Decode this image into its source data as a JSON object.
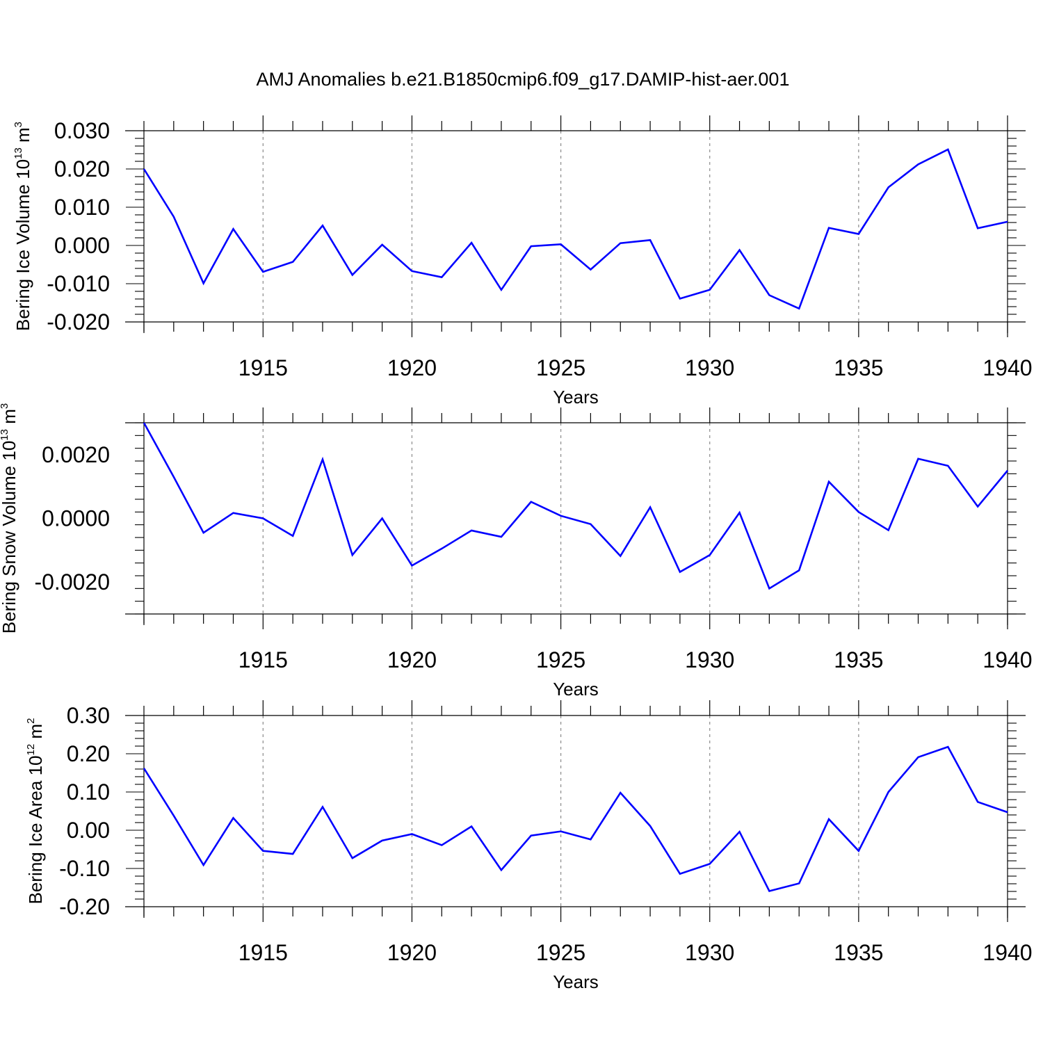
{
  "figure": {
    "title": "AMJ Anomalies b.e21.B1850cmip6.f09_g17.DAMIP-hist-aer.001"
  },
  "chart_data": [
    {
      "type": "line",
      "title": "",
      "xlabel": "Years",
      "ylabel": {
        "base": "Bering Ice Volume 10",
        "exp": "13",
        "unit": " m",
        "unit_exp": "3"
      },
      "xlim": [
        1911,
        1940
      ],
      "ylim": [
        -0.02,
        0.03
      ],
      "x_ticks": [
        "1915",
        "1920",
        "1925",
        "1930",
        "1935",
        "1940"
      ],
      "y_ticks": [
        {
          "v": 0.03,
          "label": "0.030"
        },
        {
          "v": 0.02,
          "label": "0.020"
        },
        {
          "v": 0.01,
          "label": "0.010"
        },
        {
          "v": 0.0,
          "label": "0.000"
        },
        {
          "v": -0.01,
          "label": "-0.010"
        },
        {
          "v": -0.02,
          "label": "-0.020"
        }
      ],
      "grid": "vertical dashed at major x ticks",
      "color": "#0000ff",
      "series": [
        {
          "x": [
            1911,
            1912,
            1913,
            1914,
            1915,
            1916,
            1917,
            1918,
            1919,
            1920,
            1921,
            1922,
            1923,
            1924,
            1925,
            1926,
            1927,
            1928,
            1929,
            1930,
            1931,
            1932,
            1933,
            1934,
            1935,
            1936,
            1937,
            1938,
            1939,
            1940
          ],
          "values": [
            0.02,
            0.0075,
            -0.0099,
            0.0043,
            -0.0069,
            -0.0043,
            0.0052,
            -0.0077,
            0.0002,
            -0.0067,
            -0.0083,
            0.0007,
            -0.0116,
            -0.0002,
            0.0003,
            -0.0063,
            0.0006,
            0.0014,
            -0.0139,
            -0.0116,
            -0.0012,
            -0.013,
            -0.0165,
            0.0046,
            0.003,
            0.0152,
            0.0212,
            0.0251,
            0.0045,
            0.0062
          ]
        }
      ]
    },
    {
      "type": "line",
      "title": "",
      "xlabel": "Years",
      "ylabel": {
        "base": "Bering Snow Volume 10",
        "exp": "13",
        "unit": " m",
        "unit_exp": "3"
      },
      "xlim": [
        1911,
        1940
      ],
      "ylim": [
        -0.003,
        0.003
      ],
      "x_ticks": [
        "1915",
        "1920",
        "1925",
        "1930",
        "1935",
        "1940"
      ],
      "y_ticks": [
        {
          "v": 0.002,
          "label": "0.0020"
        },
        {
          "v": 0.0,
          "label": "0.0000"
        },
        {
          "v": -0.002,
          "label": "-0.0020"
        }
      ],
      "grid": "vertical dashed at major x ticks",
      "color": "#0000ff",
      "series": [
        {
          "x": [
            1911,
            1912,
            1913,
            1914,
            1915,
            1916,
            1917,
            1918,
            1919,
            1920,
            1921,
            1922,
            1923,
            1924,
            1925,
            1926,
            1927,
            1928,
            1929,
            1930,
            1931,
            1932,
            1933,
            1934,
            1935,
            1936,
            1937,
            1938,
            1939,
            1940
          ],
          "values": [
            0.003,
            0.0013,
            -0.00045,
            0.00017,
            0.0,
            -0.00055,
            0.00185,
            -0.00115,
            0.0,
            -0.00148,
            -0.00095,
            -0.00038,
            -0.00058,
            0.00052,
            8e-05,
            -0.00018,
            -0.00118,
            0.00035,
            -0.00168,
            -0.00115,
            0.00018,
            -0.0022,
            -0.00163,
            0.00115,
            0.0002,
            -0.00037,
            0.00187,
            0.00165,
            0.00037,
            0.0015
          ]
        }
      ]
    },
    {
      "type": "line",
      "title": "",
      "xlabel": "Years",
      "ylabel": {
        "base": "Bering Ice Area 10",
        "exp": "12",
        "unit": " m",
        "unit_exp": "2"
      },
      "xlim": [
        1911,
        1940
      ],
      "ylim": [
        -0.2,
        0.3
      ],
      "x_ticks": [
        "1915",
        "1920",
        "1925",
        "1930",
        "1935",
        "1940"
      ],
      "y_ticks": [
        {
          "v": 0.3,
          "label": "0.30"
        },
        {
          "v": 0.2,
          "label": "0.20"
        },
        {
          "v": 0.1,
          "label": "0.10"
        },
        {
          "v": 0.0,
          "label": "0.00"
        },
        {
          "v": -0.1,
          "label": "-0.10"
        },
        {
          "v": -0.2,
          "label": "-0.20"
        }
      ],
      "grid": "vertical dashed at major x ticks",
      "color": "#0000ff",
      "series": [
        {
          "x": [
            1911,
            1912,
            1913,
            1914,
            1915,
            1916,
            1917,
            1918,
            1919,
            1920,
            1921,
            1922,
            1923,
            1924,
            1925,
            1926,
            1927,
            1928,
            1929,
            1930,
            1931,
            1932,
            1933,
            1934,
            1935,
            1936,
            1937,
            1938,
            1939,
            1940
          ],
          "values": [
            0.162,
            0.038,
            -0.091,
            0.032,
            -0.054,
            -0.062,
            0.061,
            -0.073,
            -0.027,
            -0.01,
            -0.039,
            0.01,
            -0.104,
            -0.014,
            -0.003,
            -0.024,
            0.098,
            0.011,
            -0.114,
            -0.088,
            -0.004,
            -0.159,
            -0.139,
            0.029,
            -0.054,
            0.1,
            0.191,
            0.218,
            0.074,
            0.047
          ]
        }
      ]
    }
  ]
}
